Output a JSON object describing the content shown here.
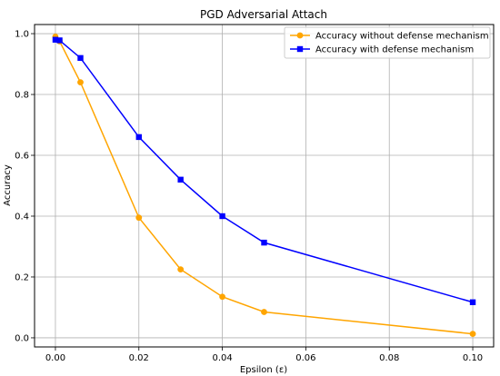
{
  "chart_data": {
    "type": "line",
    "title": "PGD Adversarial Attach",
    "xlabel": "Epsilon (ε)",
    "ylabel": "Accuracy",
    "xlim": [
      -0.005,
      0.105
    ],
    "ylim": [
      -0.03,
      1.03
    ],
    "xticks": [
      0.0,
      0.02,
      0.04,
      0.06,
      0.08,
      0.1
    ],
    "xtick_labels": [
      "0.00",
      "0.02",
      "0.04",
      "0.06",
      "0.08",
      "0.10"
    ],
    "yticks": [
      0.0,
      0.2,
      0.4,
      0.6,
      0.8,
      1.0
    ],
    "ytick_labels": [
      "0.0",
      "0.2",
      "0.4",
      "0.6",
      "0.8",
      "1.0"
    ],
    "grid": true,
    "legend_position": "top-right",
    "series": [
      {
        "name": "Accuracy without defense mechanism",
        "color": "#ffa500",
        "marker": "circle",
        "x": [
          0.0,
          0.001,
          0.006,
          0.02,
          0.03,
          0.04,
          0.05,
          0.1
        ],
        "y": [
          0.99,
          0.975,
          0.84,
          0.395,
          0.225,
          0.135,
          0.085,
          0.013
        ]
      },
      {
        "name": "Accuracy with defense mechanism",
        "color": "#0000ff",
        "marker": "square",
        "x": [
          0.0,
          0.001,
          0.006,
          0.02,
          0.03,
          0.04,
          0.05,
          0.1
        ],
        "y": [
          0.98,
          0.978,
          0.92,
          0.66,
          0.52,
          0.4,
          0.313,
          0.117
        ]
      }
    ]
  }
}
